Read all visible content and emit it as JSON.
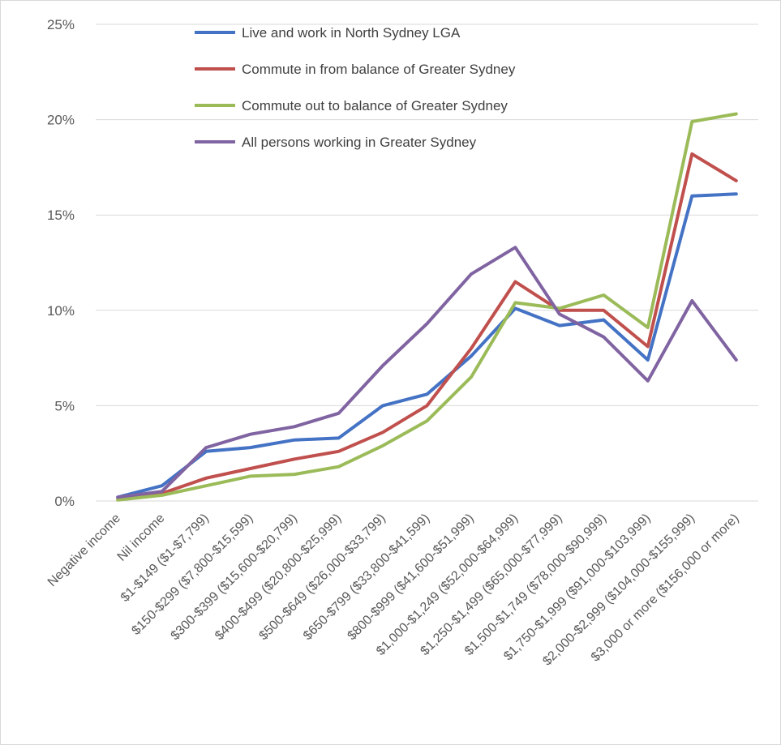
{
  "chart_data": {
    "type": "line",
    "title": "",
    "xlabel": "",
    "ylabel": "",
    "ylim": [
      0,
      25
    ],
    "y_ticks": [
      0,
      5,
      10,
      15,
      20,
      25
    ],
    "y_tick_labels": [
      "0%",
      "5%",
      "10%",
      "15%",
      "20%",
      "25%"
    ],
    "grid": true,
    "legend_position": "top-center",
    "categories": [
      "Negative income",
      "Nil income",
      "$1-$149 ($1-$7,799)",
      "$150-$299 ($7,800-$15,599)",
      "$300-$399 ($15,600-$20,799)",
      "$400-$499 ($20,800-$25,999)",
      "$500-$649 ($26,000-$33,799)",
      "$650-$799 ($33,800-$41,599)",
      "$800-$999 ($41,600-$51,999)",
      "$1,000-$1,249 ($52,000-$64,999)",
      "$1,250-$1,499 ($65,000-$77,999)",
      "$1,500-$1,749 ($78,000-$90,999)",
      "$1,750-$1,999 ($91,000-$103,999)",
      "$2,000-$2,999 ($104,000-$155,999)",
      "$3,000 or more ($156,000 or more)"
    ],
    "series": [
      {
        "name": "Live and work in North Sydney LGA",
        "color": "#4472c4",
        "values": [
          0.2,
          0.8,
          2.6,
          2.8,
          3.2,
          3.3,
          5.0,
          5.6,
          7.6,
          10.1,
          9.2,
          9.5,
          7.4,
          16.0,
          16.1
        ]
      },
      {
        "name": "Commute in from balance of Greater Sydney",
        "color": "#c0504d",
        "values": [
          0.1,
          0.4,
          1.2,
          1.7,
          2.2,
          2.6,
          3.6,
          5.0,
          8.0,
          11.5,
          10.0,
          10.0,
          8.1,
          18.2,
          16.8
        ]
      },
      {
        "name": "Commute out to balance of Greater Sydney",
        "color": "#9bbb59",
        "values": [
          0.05,
          0.3,
          0.8,
          1.3,
          1.4,
          1.8,
          2.9,
          4.2,
          6.5,
          10.4,
          10.1,
          10.8,
          9.1,
          19.9,
          20.3
        ]
      },
      {
        "name": "All persons working in Greater Sydney",
        "color": "#8064a2",
        "values": [
          0.2,
          0.5,
          2.8,
          3.5,
          3.9,
          4.6,
          7.1,
          9.3,
          11.9,
          13.3,
          9.8,
          8.6,
          6.3,
          10.5,
          7.4
        ]
      }
    ]
  }
}
